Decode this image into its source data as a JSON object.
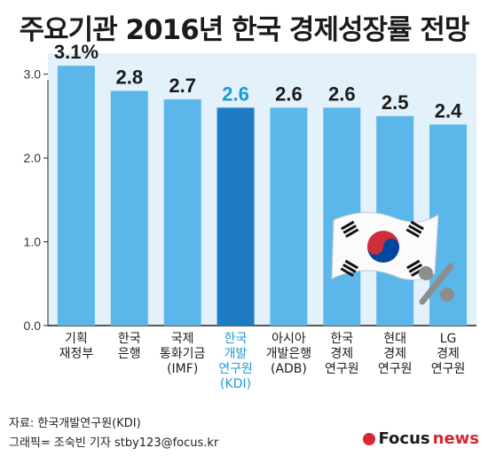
{
  "title": "주요기관 2016년 한국 경제성장률 전망",
  "source": "자료: 한국개발연구원(KDI)",
  "credit": "그래픽= 조숙빈 기자 stby123@focus.kr",
  "logo": {
    "brand": "Focus",
    "suffix": "news"
  },
  "colors": {
    "bar": "#5bb7ea",
    "bar_highlight": "#1f7cc4",
    "value_label": "#1b1b1b",
    "highlight_text": "#1f9ad8",
    "panel_bg": "#e2f1fa",
    "axis": "#222222",
    "logo_red": "#d7282f"
  },
  "chart_data": {
    "type": "bar",
    "title": "주요기관 2016년 한국 경제성장률 전망",
    "categories": [
      [
        "기획",
        "재정부"
      ],
      [
        "한국",
        "은행"
      ],
      [
        "국제",
        "통화기금",
        "(IMF)"
      ],
      [
        "한국",
        "개발",
        "연구원",
        "(KDI)"
      ],
      [
        "아시아",
        "개발은행",
        "(ADB)"
      ],
      [
        "한국",
        "경제",
        "연구원"
      ],
      [
        "현대",
        "경제",
        "연구원"
      ],
      [
        "LG",
        "경제",
        "연구원"
      ]
    ],
    "values": [
      3.1,
      2.8,
      2.7,
      2.6,
      2.6,
      2.6,
      2.5,
      2.4
    ],
    "value_labels": [
      "3.1%",
      "2.8",
      "2.7",
      "2.6",
      "2.6",
      "2.6",
      "2.5",
      "2.4"
    ],
    "highlight_index": 3,
    "yticks": [
      "0.0",
      "1.0",
      "2.0",
      "3.0"
    ],
    "ylim": [
      0,
      3.25
    ],
    "grid": false,
    "legend": "none",
    "decoration": [
      "korean-flag-icon",
      "percent-icon"
    ]
  }
}
